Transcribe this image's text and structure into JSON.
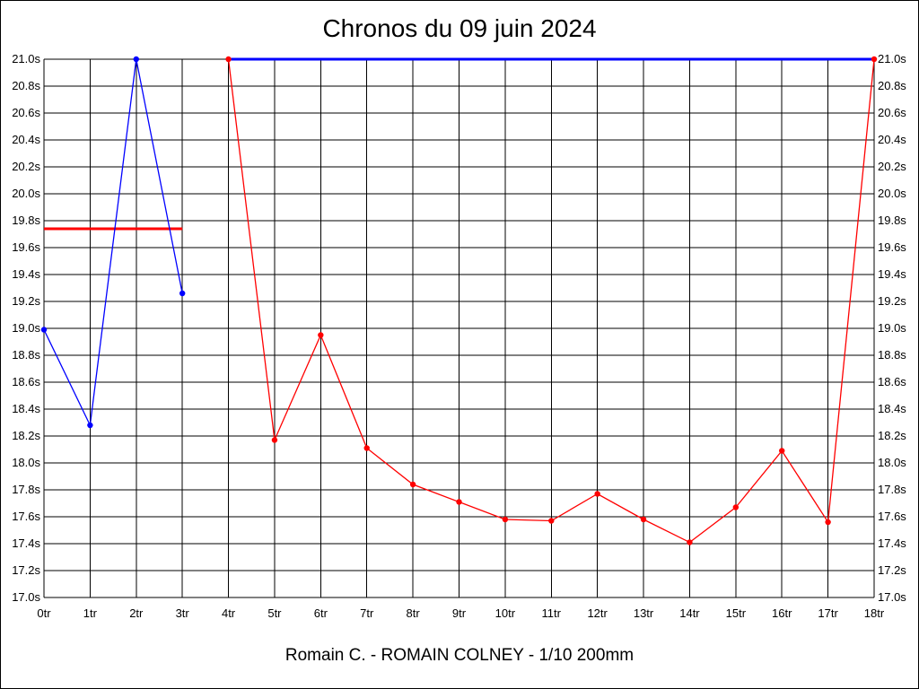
{
  "chart_data": {
    "type": "line",
    "title": "Chronos du 09 juin 2024",
    "caption": "Romain C. - ROMAIN COLNEY - 1/10 200mm",
    "xlabel": "",
    "ylabel": "",
    "categories": [
      "0tr",
      "1tr",
      "2tr",
      "3tr",
      "4tr",
      "5tr",
      "6tr",
      "7tr",
      "8tr",
      "9tr",
      "10tr",
      "11tr",
      "12tr",
      "13tr",
      "14tr",
      "15tr",
      "16tr",
      "17tr",
      "18tr"
    ],
    "ylim": [
      17.0,
      21.0
    ],
    "yticks": [
      "17.0s",
      "17.2s",
      "17.4s",
      "17.6s",
      "17.8s",
      "18.0s",
      "18.2s",
      "18.4s",
      "18.6s",
      "18.8s",
      "19.0s",
      "19.2s",
      "19.4s",
      "19.6s",
      "19.8s",
      "20.0s",
      "20.2s",
      "20.4s",
      "20.6s",
      "20.8s",
      "21.0s"
    ],
    "grid": true,
    "series": [
      {
        "color": "#0000ff",
        "x": [
          0,
          1,
          2,
          3
        ],
        "values": [
          18.99,
          18.28,
          21.0,
          19.26
        ]
      },
      {
        "color": "#ff0000",
        "x": [
          4,
          5,
          6,
          7,
          8,
          9,
          10,
          11,
          12,
          13,
          14,
          15,
          16,
          17,
          18
        ],
        "values": [
          21.0,
          18.17,
          18.95,
          18.11,
          17.84,
          17.71,
          17.58,
          17.57,
          17.77,
          17.58,
          17.41,
          17.67,
          18.09,
          17.56,
          21.0
        ]
      }
    ],
    "reference_lines": [
      {
        "color": "#ff0000",
        "x": [
          0,
          3
        ],
        "y": 19.74
      },
      {
        "color": "#0000ff",
        "x": [
          4,
          18
        ],
        "y": 21.0
      }
    ]
  }
}
